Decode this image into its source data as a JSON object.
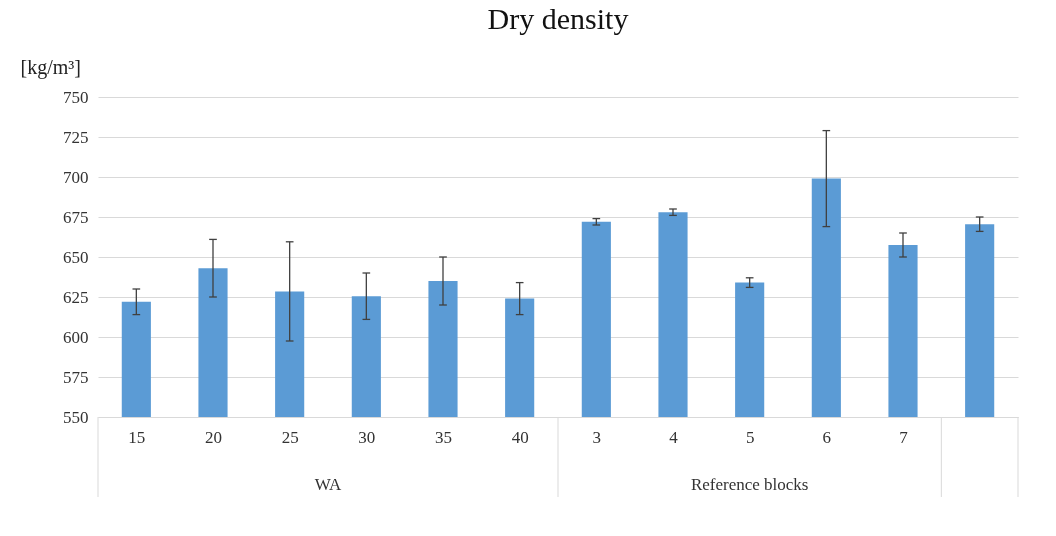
{
  "chart_data": {
    "type": "bar",
    "title": "Dry density",
    "ylabel": "[kg/m³]",
    "categories": [
      "15",
      "20",
      "25",
      "30",
      "35",
      "40",
      "3",
      "4",
      "5",
      "6",
      "7",
      null
    ],
    "values": [
      622,
      643,
      628.5,
      625.5,
      635,
      624,
      672,
      678,
      634,
      699,
      657.5,
      670.5
    ],
    "errors": [
      8,
      18,
      31,
      14.5,
      15,
      10,
      2,
      2,
      3,
      30,
      7.5,
      4.5
    ],
    "color": "#5b9bd5",
    "ylim": [
      550,
      750
    ],
    "yticks": [
      550,
      575,
      600,
      625,
      650,
      675,
      700,
      725,
      750
    ],
    "grid": "y",
    "annotations": [
      "WA",
      "Reference blocks"
    ]
  }
}
